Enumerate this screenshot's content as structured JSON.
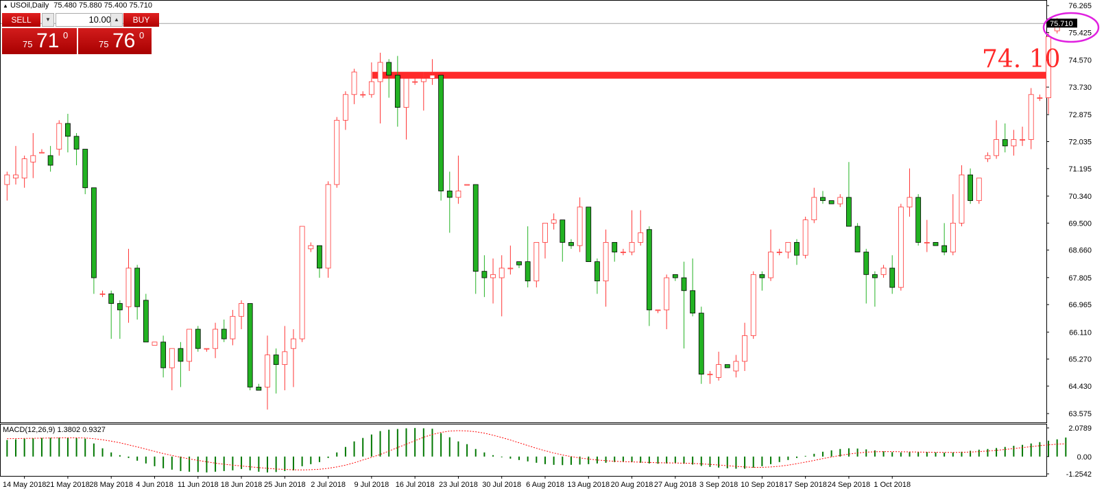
{
  "header": {
    "symbol": "USOil,Daily",
    "ohlc": "75.480 75.880 75.400 75.710"
  },
  "trade_panel": {
    "sell_label": "SELL",
    "buy_label": "BUY",
    "quantity": "10.00",
    "sell_price_prefix": "75",
    "sell_price_big": "71",
    "sell_price_sup": "0",
    "buy_price_prefix": "75",
    "buy_price_big": "76",
    "buy_price_sup": "0"
  },
  "annotation": {
    "level_label": "74. 10",
    "level_value": 74.1,
    "line_color": "#ff2a2a",
    "circle_color": "#e020e0"
  },
  "current_price_label": "75.710",
  "colors": {
    "bull": "#ff3333",
    "bear": "#22b222",
    "macd_bar": "#007700",
    "signal": "#ff0000"
  },
  "indicator": {
    "label": "MACD(12,26,9) 1.3802 0.9327"
  },
  "chart_data": [
    {
      "type": "candlestick",
      "title": "USOil,Daily",
      "y_ticks": [
        76.265,
        75.425,
        74.57,
        73.73,
        72.875,
        72.035,
        71.195,
        70.34,
        69.5,
        68.66,
        67.805,
        66.965,
        66.11,
        65.27,
        64.43,
        63.575
      ],
      "ylim": [
        63.3,
        76.44
      ],
      "x_labels": [
        "14 May 2018",
        "21 May 2018",
        "28 May 2018",
        "4 Jun 2018",
        "11 Jun 2018",
        "18 Jun 2018",
        "25 Jun 2018",
        "2 Jul 2018",
        "9 Jul 2018",
        "16 Jul 2018",
        "23 Jul 2018",
        "30 Jul 2018",
        "6 Aug 2018",
        "13 Aug 2018",
        "20 Aug 2018",
        "27 Aug 2018",
        "3 Sep 2018",
        "10 Sep 2018",
        "17 Sep 2018",
        "24 Sep 2018",
        "1 Oct 2018"
      ],
      "candles": [
        {
          "o": 70.7,
          "h": 71.1,
          "l": 70.2,
          "c": 71.0
        },
        {
          "o": 70.9,
          "h": 71.9,
          "l": 70.7,
          "c": 71.0
        },
        {
          "o": 70.9,
          "h": 71.6,
          "l": 70.6,
          "c": 71.5
        },
        {
          "o": 71.4,
          "h": 72.3,
          "l": 70.9,
          "c": 71.6
        },
        {
          "o": 71.7,
          "h": 71.8,
          "l": 71.7,
          "c": 71.7
        },
        {
          "o": 71.6,
          "h": 71.9,
          "l": 71.1,
          "c": 71.3
        },
        {
          "o": 71.8,
          "h": 72.7,
          "l": 71.6,
          "c": 72.6
        },
        {
          "o": 72.6,
          "h": 72.9,
          "l": 71.7,
          "c": 72.2
        },
        {
          "o": 72.2,
          "h": 72.3,
          "l": 71.3,
          "c": 71.8
        },
        {
          "o": 71.8,
          "h": 71.8,
          "l": 70.4,
          "c": 70.6
        },
        {
          "o": 70.6,
          "h": 70.6,
          "l": 67.3,
          "c": 67.8
        },
        {
          "o": 67.3,
          "h": 67.4,
          "l": 67.2,
          "c": 67.3
        },
        {
          "o": 67.3,
          "h": 67.4,
          "l": 65.9,
          "c": 67.0
        },
        {
          "o": 67.0,
          "h": 67.1,
          "l": 65.9,
          "c": 66.8
        },
        {
          "o": 66.9,
          "h": 68.7,
          "l": 66.4,
          "c": 68.1
        },
        {
          "o": 68.1,
          "h": 68.2,
          "l": 66.5,
          "c": 66.9
        },
        {
          "o": 67.1,
          "h": 67.3,
          "l": 65.8,
          "c": 65.8
        },
        {
          "o": 65.7,
          "h": 65.8,
          "l": 65.7,
          "c": 65.8
        },
        {
          "o": 65.8,
          "h": 66.0,
          "l": 64.7,
          "c": 65.0
        },
        {
          "o": 65.0,
          "h": 65.6,
          "l": 64.3,
          "c": 65.6
        },
        {
          "o": 65.6,
          "h": 65.8,
          "l": 64.4,
          "c": 65.2
        },
        {
          "o": 65.2,
          "h": 66.2,
          "l": 64.9,
          "c": 66.2
        },
        {
          "o": 66.2,
          "h": 66.3,
          "l": 65.5,
          "c": 65.6
        },
        {
          "o": 65.6,
          "h": 65.6,
          "l": 65.5,
          "c": 65.6
        },
        {
          "o": 65.6,
          "h": 66.4,
          "l": 65.3,
          "c": 66.2
        },
        {
          "o": 66.2,
          "h": 66.5,
          "l": 65.8,
          "c": 65.9
        },
        {
          "o": 65.9,
          "h": 66.8,
          "l": 65.7,
          "c": 66.6
        },
        {
          "o": 66.6,
          "h": 67.1,
          "l": 66.2,
          "c": 67.0
        },
        {
          "o": 67.0,
          "h": 67.0,
          "l": 64.3,
          "c": 64.4
        },
        {
          "o": 64.4,
          "h": 64.5,
          "l": 64.3,
          "c": 64.3
        },
        {
          "o": 64.4,
          "h": 66.0,
          "l": 63.7,
          "c": 65.4
        },
        {
          "o": 65.4,
          "h": 65.6,
          "l": 64.2,
          "c": 65.1
        },
        {
          "o": 65.1,
          "h": 66.3,
          "l": 64.3,
          "c": 65.5
        },
        {
          "o": 65.6,
          "h": 66.2,
          "l": 64.4,
          "c": 65.9
        },
        {
          "o": 65.9,
          "h": 69.4,
          "l": 65.8,
          "c": 69.4
        },
        {
          "o": 68.7,
          "h": 68.9,
          "l": 68.6,
          "c": 68.8
        },
        {
          "o": 68.8,
          "h": 68.8,
          "l": 67.8,
          "c": 68.1
        },
        {
          "o": 68.1,
          "h": 70.8,
          "l": 67.8,
          "c": 70.7
        },
        {
          "o": 70.7,
          "h": 72.8,
          "l": 70.6,
          "c": 72.7
        },
        {
          "o": 72.7,
          "h": 73.6,
          "l": 72.4,
          "c": 73.5
        },
        {
          "o": 73.5,
          "h": 74.3,
          "l": 73.2,
          "c": 74.2
        },
        {
          "o": 73.5,
          "h": 73.6,
          "l": 73.4,
          "c": 73.5
        },
        {
          "o": 73.5,
          "h": 74.5,
          "l": 73.4,
          "c": 73.9
        },
        {
          "o": 73.9,
          "h": 74.8,
          "l": 72.6,
          "c": 74.5
        },
        {
          "o": 74.5,
          "h": 74.6,
          "l": 73.4,
          "c": 74.1
        },
        {
          "o": 74.1,
          "h": 74.7,
          "l": 72.5,
          "c": 73.1
        },
        {
          "o": 73.1,
          "h": 74.0,
          "l": 72.1,
          "c": 74.0
        },
        {
          "o": 73.9,
          "h": 74.0,
          "l": 73.8,
          "c": 73.9
        },
        {
          "o": 73.9,
          "h": 74.2,
          "l": 73.0,
          "c": 74.0
        },
        {
          "o": 74.0,
          "h": 74.6,
          "l": 73.8,
          "c": 74.1
        },
        {
          "o": 74.1,
          "h": 74.1,
          "l": 70.2,
          "c": 70.5
        },
        {
          "o": 70.5,
          "h": 71.1,
          "l": 69.2,
          "c": 70.3
        },
        {
          "o": 70.3,
          "h": 71.6,
          "l": 70.1,
          "c": 70.5
        },
        {
          "o": 70.7,
          "h": 70.7,
          "l": 70.7,
          "c": 70.7
        },
        {
          "o": 70.7,
          "h": 70.7,
          "l": 67.3,
          "c": 68.0
        },
        {
          "o": 68.0,
          "h": 68.5,
          "l": 67.2,
          "c": 67.8
        },
        {
          "o": 67.8,
          "h": 68.4,
          "l": 67.0,
          "c": 67.9
        },
        {
          "o": 67.8,
          "h": 68.5,
          "l": 66.6,
          "c": 68.1
        },
        {
          "o": 68.1,
          "h": 68.8,
          "l": 67.9,
          "c": 68.1
        },
        {
          "o": 68.3,
          "h": 68.3,
          "l": 68.1,
          "c": 68.2
        },
        {
          "o": 68.3,
          "h": 69.4,
          "l": 67.5,
          "c": 67.7
        },
        {
          "o": 67.7,
          "h": 68.9,
          "l": 67.5,
          "c": 68.9
        },
        {
          "o": 68.9,
          "h": 69.5,
          "l": 68.4,
          "c": 69.5
        },
        {
          "o": 69.5,
          "h": 69.8,
          "l": 69.3,
          "c": 69.6
        },
        {
          "o": 69.6,
          "h": 69.6,
          "l": 68.3,
          "c": 68.9
        },
        {
          "o": 68.9,
          "h": 69.0,
          "l": 68.7,
          "c": 68.8
        },
        {
          "o": 68.8,
          "h": 70.3,
          "l": 68.6,
          "c": 70.0
        },
        {
          "o": 70.0,
          "h": 70.0,
          "l": 68.3,
          "c": 68.3
        },
        {
          "o": 68.3,
          "h": 68.4,
          "l": 67.3,
          "c": 67.7
        },
        {
          "o": 67.7,
          "h": 69.3,
          "l": 66.9,
          "c": 68.9
        },
        {
          "o": 68.9,
          "h": 68.9,
          "l": 68.3,
          "c": 68.6
        },
        {
          "o": 68.6,
          "h": 68.7,
          "l": 68.5,
          "c": 68.6
        },
        {
          "o": 68.6,
          "h": 69.9,
          "l": 68.5,
          "c": 68.9
        },
        {
          "o": 68.9,
          "h": 69.9,
          "l": 68.8,
          "c": 69.2
        },
        {
          "o": 69.3,
          "h": 69.4,
          "l": 66.3,
          "c": 66.8
        },
        {
          "o": 66.8,
          "h": 66.8,
          "l": 66.7,
          "c": 66.8
        },
        {
          "o": 66.8,
          "h": 67.9,
          "l": 66.2,
          "c": 67.8
        },
        {
          "o": 67.9,
          "h": 67.9,
          "l": 67.7,
          "c": 67.8
        },
        {
          "o": 67.8,
          "h": 68.3,
          "l": 65.6,
          "c": 67.4
        },
        {
          "o": 67.4,
          "h": 68.4,
          "l": 66.6,
          "c": 66.7
        },
        {
          "o": 66.7,
          "h": 66.9,
          "l": 64.5,
          "c": 64.8
        },
        {
          "o": 64.8,
          "h": 64.9,
          "l": 64.5,
          "c": 64.8
        },
        {
          "o": 64.7,
          "h": 65.5,
          "l": 64.6,
          "c": 65.1
        },
        {
          "o": 65.1,
          "h": 65.1,
          "l": 65.0,
          "c": 65.0
        },
        {
          "o": 64.9,
          "h": 65.4,
          "l": 64.7,
          "c": 65.2
        },
        {
          "o": 65.2,
          "h": 66.4,
          "l": 64.9,
          "c": 66.0
        },
        {
          "o": 66.0,
          "h": 68.0,
          "l": 65.9,
          "c": 67.9
        },
        {
          "o": 67.9,
          "h": 68.0,
          "l": 67.4,
          "c": 67.8
        },
        {
          "o": 67.8,
          "h": 69.3,
          "l": 67.7,
          "c": 68.6
        },
        {
          "o": 68.6,
          "h": 68.7,
          "l": 68.5,
          "c": 68.6
        },
        {
          "o": 68.6,
          "h": 68.9,
          "l": 68.4,
          "c": 68.9
        },
        {
          "o": 68.9,
          "h": 69.0,
          "l": 68.2,
          "c": 68.5
        },
        {
          "o": 68.5,
          "h": 69.7,
          "l": 68.4,
          "c": 69.6
        },
        {
          "o": 69.6,
          "h": 70.6,
          "l": 69.5,
          "c": 70.3
        },
        {
          "o": 70.3,
          "h": 70.5,
          "l": 70.1,
          "c": 70.2
        },
        {
          "o": 70.2,
          "h": 70.2,
          "l": 70.1,
          "c": 70.1
        },
        {
          "o": 70.1,
          "h": 70.4,
          "l": 70.0,
          "c": 70.3
        },
        {
          "o": 70.3,
          "h": 71.4,
          "l": 69.4,
          "c": 69.4
        },
        {
          "o": 69.4,
          "h": 69.5,
          "l": 68.6,
          "c": 68.6
        },
        {
          "o": 68.6,
          "h": 68.7,
          "l": 67.0,
          "c": 67.9
        },
        {
          "o": 67.9,
          "h": 68.0,
          "l": 66.9,
          "c": 67.8
        },
        {
          "o": 67.9,
          "h": 68.2,
          "l": 67.8,
          "c": 68.1
        },
        {
          "o": 68.1,
          "h": 68.5,
          "l": 67.3,
          "c": 67.5
        },
        {
          "o": 67.5,
          "h": 70.1,
          "l": 67.4,
          "c": 70.0
        },
        {
          "o": 70.0,
          "h": 71.2,
          "l": 69.7,
          "c": 70.3
        },
        {
          "o": 70.3,
          "h": 70.4,
          "l": 68.8,
          "c": 68.9
        },
        {
          "o": 68.9,
          "h": 69.6,
          "l": 68.6,
          "c": 68.9
        },
        {
          "o": 68.9,
          "h": 68.9,
          "l": 68.8,
          "c": 68.8
        },
        {
          "o": 68.8,
          "h": 69.5,
          "l": 68.5,
          "c": 68.6
        },
        {
          "o": 68.6,
          "h": 70.4,
          "l": 68.5,
          "c": 69.5
        },
        {
          "o": 69.5,
          "h": 71.3,
          "l": 69.4,
          "c": 71.0
        },
        {
          "o": 71.0,
          "h": 71.2,
          "l": 70.1,
          "c": 70.2
        },
        {
          "o": 70.2,
          "h": 70.9,
          "l": 70.1,
          "c": 70.9
        },
        {
          "o": 71.5,
          "h": 71.7,
          "l": 71.4,
          "c": 71.6
        },
        {
          "o": 71.6,
          "h": 72.7,
          "l": 71.5,
          "c": 72.1
        },
        {
          "o": 72.1,
          "h": 72.6,
          "l": 71.7,
          "c": 71.9
        },
        {
          "o": 71.9,
          "h": 72.4,
          "l": 71.6,
          "c": 72.1
        },
        {
          "o": 72.1,
          "h": 72.5,
          "l": 71.9,
          "c": 72.1
        },
        {
          "o": 72.1,
          "h": 73.7,
          "l": 71.8,
          "c": 73.5
        },
        {
          "o": 73.4,
          "h": 73.5,
          "l": 73.3,
          "c": 73.4
        },
        {
          "o": 73.4,
          "h": 75.4,
          "l": 72.9,
          "c": 75.3
        },
        {
          "o": 75.48,
          "h": 75.88,
          "l": 75.4,
          "c": 75.71
        }
      ]
    },
    {
      "type": "bar",
      "title": "MACD(12,26,9) 1.3802 0.9327",
      "y_ticks": [
        2.0789,
        0.0,
        -1.2542
      ],
      "ylim": [
        -1.2542,
        2.0789
      ],
      "histogram": [
        1.2,
        1.25,
        1.3,
        1.32,
        1.35,
        1.36,
        1.38,
        1.37,
        1.35,
        1.3,
        0.95,
        0.6,
        0.3,
        0.1,
        -0.1,
        -0.3,
        -0.5,
        -0.7,
        -0.85,
        -0.95,
        -1.05,
        -1.1,
        -1.12,
        -1.15,
        -1.1,
        -1.05,
        -1.0,
        -0.9,
        -1.0,
        -1.1,
        -1.15,
        -1.12,
        -1.05,
        -1.0,
        -0.7,
        -0.55,
        -0.4,
        -0.1,
        0.3,
        0.7,
        1.1,
        1.35,
        1.6,
        1.85,
        1.95,
        2.0,
        2.05,
        2.07,
        2.05,
        2.02,
        1.7,
        1.4,
        1.1,
        0.9,
        0.55,
        0.3,
        0.1,
        -0.05,
        -0.15,
        -0.25,
        -0.35,
        -0.45,
        -0.55,
        -0.6,
        -0.62,
        -0.6,
        -0.58,
        -0.55,
        -0.5,
        -0.45,
        -0.4,
        -0.38,
        -0.4,
        -0.45,
        -0.5,
        -0.52,
        -0.5,
        -0.48,
        -0.52,
        -0.58,
        -0.68,
        -0.75,
        -0.8,
        -0.85,
        -0.88,
        -0.88,
        -0.8,
        -0.7,
        -0.55,
        -0.4,
        -0.25,
        -0.1,
        0.05,
        0.2,
        0.35,
        0.45,
        0.55,
        0.6,
        0.58,
        0.52,
        0.45,
        0.38,
        0.32,
        0.3,
        0.32,
        0.34,
        0.33,
        0.3,
        0.28,
        0.3,
        0.35,
        0.42,
        0.5,
        0.55,
        0.62,
        0.7,
        0.78,
        0.85,
        0.95,
        1.05,
        1.15,
        1.25,
        1.38
      ],
      "signal": [
        1.3,
        1.31,
        1.32,
        1.33,
        1.34,
        1.35,
        1.36,
        1.36,
        1.36,
        1.35,
        1.3,
        1.22,
        1.12,
        1.0,
        0.85,
        0.7,
        0.54,
        0.38,
        0.22,
        0.08,
        -0.05,
        -0.17,
        -0.28,
        -0.38,
        -0.48,
        -0.56,
        -0.62,
        -0.68,
        -0.74,
        -0.8,
        -0.85,
        -0.9,
        -0.93,
        -0.96,
        -0.97,
        -0.95,
        -0.92,
        -0.85,
        -0.75,
        -0.62,
        -0.45,
        -0.25,
        -0.05,
        0.15,
        0.4,
        0.65,
        0.9,
        1.15,
        1.4,
        1.6,
        1.75,
        1.85,
        1.88,
        1.86,
        1.8,
        1.7,
        1.55,
        1.38,
        1.2,
        1.0,
        0.8,
        0.6,
        0.42,
        0.26,
        0.12,
        0.0,
        -0.1,
        -0.18,
        -0.25,
        -0.3,
        -0.34,
        -0.37,
        -0.39,
        -0.41,
        -0.43,
        -0.45,
        -0.46,
        -0.47,
        -0.48,
        -0.5,
        -0.53,
        -0.57,
        -0.61,
        -0.66,
        -0.71,
        -0.75,
        -0.78,
        -0.78,
        -0.75,
        -0.7,
        -0.62,
        -0.52,
        -0.4,
        -0.28,
        -0.15,
        -0.03,
        0.08,
        0.18,
        0.26,
        0.32,
        0.35,
        0.36,
        0.36,
        0.35,
        0.34,
        0.33,
        0.32,
        0.31,
        0.3,
        0.3,
        0.31,
        0.33,
        0.36,
        0.4,
        0.45,
        0.51,
        0.58,
        0.65,
        0.72,
        0.79,
        0.85,
        0.9,
        0.93
      ]
    }
  ]
}
